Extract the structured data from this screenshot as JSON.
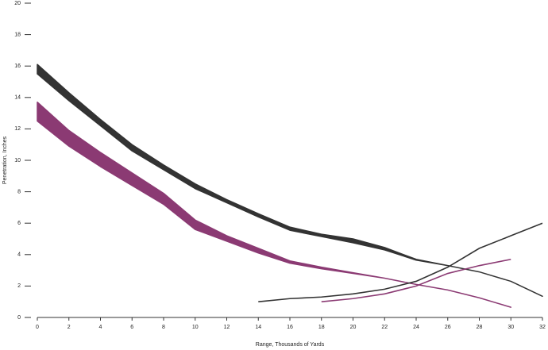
{
  "chart_data": {
    "type": "line",
    "x_label": "Range, Thousands of Yards",
    "y_label": "Penetration, Inches",
    "xlim": [
      0,
      32
    ],
    "xticks": [
      0,
      2,
      4,
      6,
      8,
      10,
      12,
      14,
      16,
      18,
      20,
      22,
      24,
      26,
      28,
      30,
      32
    ],
    "ylim": [
      0,
      20
    ],
    "yticks": [
      0,
      2,
      4,
      6,
      8,
      10,
      12,
      14,
      16,
      18,
      20
    ],
    "grid": false,
    "series": [
      {
        "color": "#333333",
        "x": [
          0,
          2,
          4,
          6,
          8,
          10,
          12,
          14,
          16,
          18,
          20,
          22,
          24,
          26,
          28,
          30,
          32
        ],
        "high": [
          16.1,
          14.3,
          12.6,
          11.0,
          9.7,
          8.5,
          7.5,
          6.6,
          5.75,
          5.3,
          5.0,
          4.45,
          3.7,
          3.3,
          2.9,
          2.3,
          1.35
        ],
        "low": [
          15.5,
          13.8,
          12.2,
          10.6,
          9.4,
          8.2,
          7.3,
          6.4,
          5.55,
          5.15,
          4.75,
          4.3,
          3.65,
          3.3,
          2.9,
          2.3,
          1.35
        ]
      },
      {
        "color": "#8b3a73",
        "x": [
          0,
          2,
          4,
          6,
          8,
          10,
          12,
          14,
          16,
          18,
          20,
          22,
          24,
          26,
          28,
          30
        ],
        "high": [
          13.7,
          11.9,
          10.5,
          9.2,
          7.9,
          6.2,
          5.2,
          4.4,
          3.6,
          3.2,
          2.85,
          2.5,
          2.1,
          1.75,
          1.25,
          0.65
        ],
        "low": [
          12.5,
          10.9,
          9.6,
          8.4,
          7.2,
          5.6,
          4.85,
          4.1,
          3.45,
          3.1,
          2.8,
          2.5,
          2.1,
          1.75,
          1.25,
          0.65
        ]
      },
      {
        "color": "#333333",
        "x": [
          14,
          16,
          18,
          20,
          22,
          24,
          26,
          28,
          30,
          32
        ],
        "values": [
          1.0,
          1.2,
          1.3,
          1.5,
          1.8,
          2.3,
          3.2,
          4.4,
          5.2,
          6.0
        ]
      },
      {
        "color": "#8b3a73",
        "x": [
          18,
          20,
          22,
          24,
          26,
          28,
          30
        ],
        "values": [
          1.0,
          1.2,
          1.5,
          2.0,
          2.8,
          3.3,
          3.7
        ]
      }
    ]
  }
}
